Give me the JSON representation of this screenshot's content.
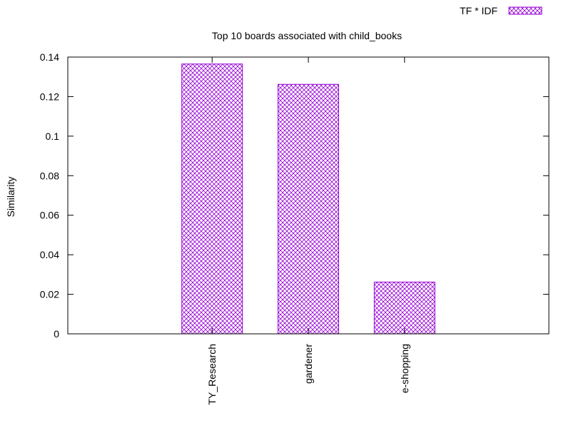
{
  "chart_data": {
    "type": "bar",
    "title": "Top 10 boards associated with child_books",
    "xlabel": "",
    "ylabel": "Similarity",
    "categories": [
      "TY_Research",
      "gardener",
      "e-shopping"
    ],
    "series": [
      {
        "name": "TF * IDF",
        "values": [
          0.1365,
          0.1262,
          0.0262
        ],
        "color": "#9400d3",
        "pattern": "crosshatch"
      }
    ],
    "ylim": [
      0,
      0.14
    ],
    "yticks": [
      0,
      0.02,
      0.04,
      0.06,
      0.08,
      0.1,
      0.12,
      0.14
    ],
    "ytick_labels": [
      "0",
      "0.02",
      "0.04",
      "0.06",
      "0.08",
      "0.1",
      "0.12",
      "0.14"
    ],
    "legend_position": "top-right",
    "grid": false
  }
}
